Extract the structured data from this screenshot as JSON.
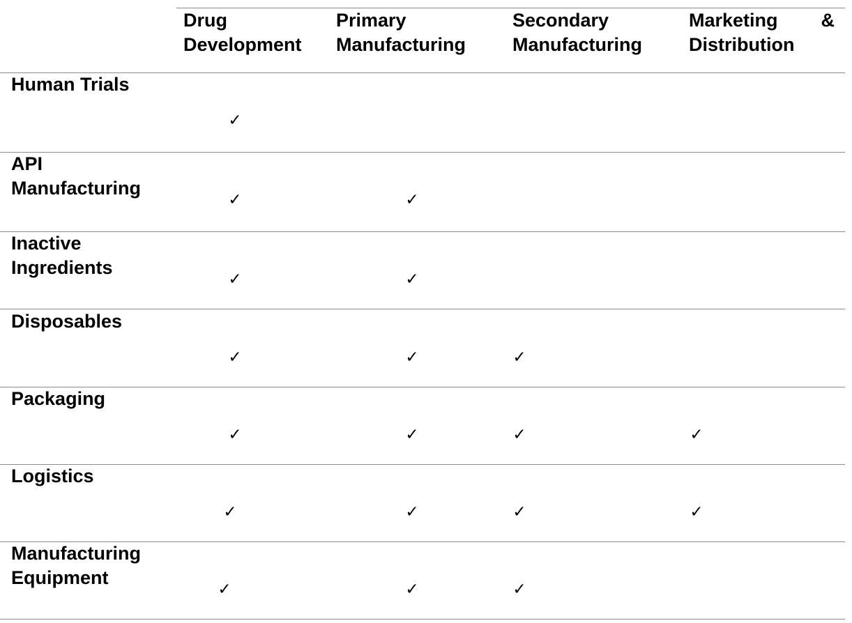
{
  "columns": [
    {
      "key": "drug_development",
      "line1": "Drug",
      "line2": "Development"
    },
    {
      "key": "primary_manufacturing",
      "line1": "Primary",
      "line2": "Manufacturing"
    },
    {
      "key": "secondary_manufacturing",
      "line1": "Secondary",
      "line2": "Manufacturing"
    },
    {
      "key": "marketing_distribution",
      "line1a": "Marketing",
      "line1b": "&",
      "line2": "Distribution"
    }
  ],
  "rows": [
    {
      "line1": "Human Trials",
      "line2": "",
      "checks": [
        true,
        false,
        false,
        false
      ]
    },
    {
      "line1": "API",
      "line2": "Manufacturing",
      "checks": [
        true,
        true,
        false,
        false
      ]
    },
    {
      "line1": "Inactive",
      "line2": "Ingredients",
      "checks": [
        true,
        true,
        false,
        false
      ]
    },
    {
      "line1": "Disposables",
      "line2": "",
      "checks": [
        true,
        true,
        true,
        false
      ]
    },
    {
      "line1": "Packaging",
      "line2": "",
      "checks": [
        true,
        true,
        true,
        true
      ]
    },
    {
      "line1": "Logistics",
      "line2": "",
      "checks": [
        true,
        true,
        true,
        true
      ]
    },
    {
      "line1": "Manufacturing",
      "line2": "Equipment",
      "checks": [
        true,
        true,
        true,
        false
      ]
    }
  ],
  "check_glyph": "✓"
}
